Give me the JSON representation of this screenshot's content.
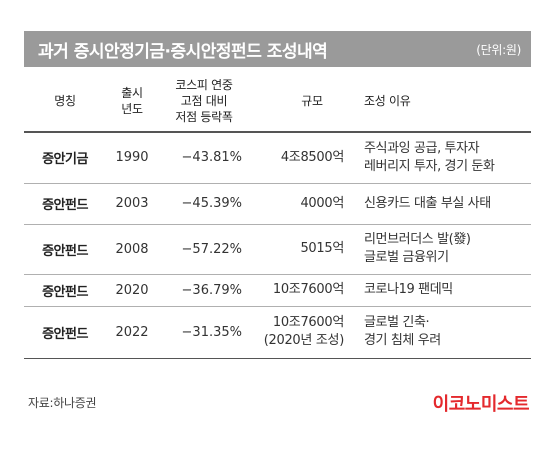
{
  "header": {
    "title": "과거 증시안정기금·증시안정펀드 조성내역",
    "unit": "(단위:원)"
  },
  "table": {
    "columns": {
      "name": "명칭",
      "year": [
        "출시",
        "년도"
      ],
      "change": [
        "코스피 연중",
        "고점 대비",
        "저점 등락폭"
      ],
      "size": "규모",
      "reason": "조성 이유"
    },
    "rows": [
      {
        "name": "증안기금",
        "year": "1990",
        "change": "−43.81%",
        "size": [
          "4조8500억"
        ],
        "reason": [
          "주식과잉 공급, 투자자",
          "레버리지 투자, 경기 둔화"
        ]
      },
      {
        "name": "증안펀드",
        "year": "2003",
        "change": "−45.39%",
        "size": [
          "4000억"
        ],
        "reason": [
          "신용카드 대출 부실 사태"
        ]
      },
      {
        "name": "증안펀드",
        "year": "2008",
        "change": "−57.22%",
        "size": [
          "5015억"
        ],
        "reason": [
          "리먼브러더스 발(發)",
          "글로벌 금융위기"
        ]
      },
      {
        "name": "증안펀드",
        "year": "2020",
        "change": "−36.79%",
        "size": [
          "10조7600억"
        ],
        "reason": [
          "코로나19 팬데믹"
        ]
      },
      {
        "name": "증안펀드",
        "year": "2022",
        "change": "−31.35%",
        "size": [
          "10조7600억",
          "(2020년 조성)"
        ],
        "reason": [
          "글로벌 긴축·",
          "경기 침체 우려"
        ]
      }
    ]
  },
  "footer": {
    "source": "자료:하나증권",
    "brand": "이코노미스트"
  },
  "colors": {
    "title_bg": "#9a9a9a",
    "brand": "#e4292d"
  }
}
